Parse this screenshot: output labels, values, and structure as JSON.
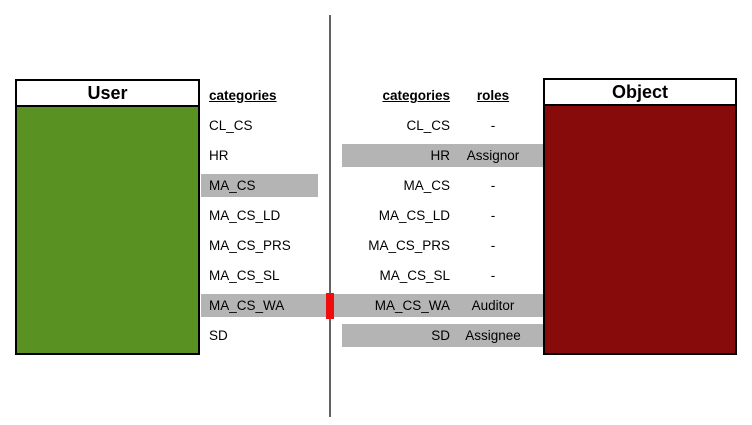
{
  "user_box": {
    "title": "User"
  },
  "object_box": {
    "title": "Object"
  },
  "user_list": {
    "header": "categories",
    "rows": [
      {
        "category": "CL_CS",
        "highlighted": false
      },
      {
        "category": "HR",
        "highlighted": false
      },
      {
        "category": "MA_CS",
        "highlighted": true
      },
      {
        "category": "MA_CS_LD",
        "highlighted": false
      },
      {
        "category": "MA_CS_PRS",
        "highlighted": false
      },
      {
        "category": "MA_CS_SL",
        "highlighted": false
      },
      {
        "category": "MA_CS_WA",
        "highlighted": true,
        "marker": true
      },
      {
        "category": "SD",
        "highlighted": false
      }
    ]
  },
  "object_list": {
    "categories_header": "categories",
    "roles_header": "roles",
    "rows": [
      {
        "category": "CL_CS",
        "role": "-",
        "highlighted": false
      },
      {
        "category": "HR",
        "role": "Assignor",
        "highlighted": true
      },
      {
        "category": "MA_CS",
        "role": "-",
        "highlighted": false
      },
      {
        "category": "MA_CS_LD",
        "role": "-",
        "highlighted": false
      },
      {
        "category": "MA_CS_PRS",
        "role": "-",
        "highlighted": false
      },
      {
        "category": "MA_CS_SL",
        "role": "-",
        "highlighted": false
      },
      {
        "category": "MA_CS_WA",
        "role": "Auditor",
        "highlighted": true,
        "marker": true
      },
      {
        "category": "SD",
        "role": "Assignee",
        "highlighted": true
      }
    ]
  },
  "colors": {
    "user": "#5A9123",
    "object": "#870B0B",
    "highlight": "#B4B4B4",
    "marker": "#F00C0C",
    "divider": "#636363"
  }
}
